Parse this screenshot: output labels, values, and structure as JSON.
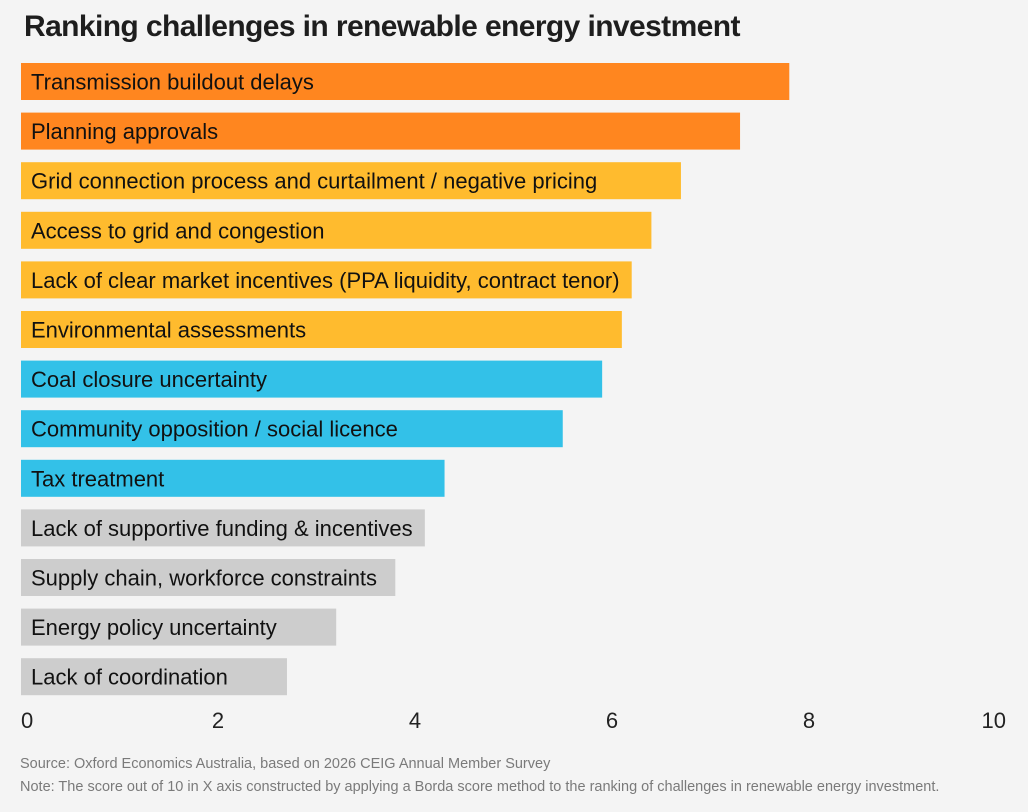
{
  "title": "Ranking challenges in renewable energy investment",
  "source": "Source: Oxford Economics Australia, based on 2026 CEIG Annual Member Survey",
  "note": "Note: The score out of 10 in X axis constructed by applying a Borda score method to the ranking of challenges in renewable energy investment.",
  "colors": {
    "orange": "#ff861f",
    "yellow": "#ffbb2e",
    "blue": "#33c1e8",
    "grey": "#cdcdcd"
  },
  "chart_data": {
    "type": "bar",
    "orientation": "horizontal",
    "title": "Ranking challenges in renewable energy investment",
    "xlim": [
      0,
      10
    ],
    "xticks": [
      0,
      2,
      4,
      6,
      8,
      10
    ],
    "grid": false,
    "categories": [
      "Transmission buildout delays",
      "Planning approvals",
      "Grid connection process and curtailment / negative pricing",
      "Access to grid and congestion",
      "Lack of clear market incentives (PPA liquidity, contract tenor)",
      "Environmental assessments",
      "Coal closure uncertainty",
      "Community opposition / social licence",
      "Tax treatment",
      "Lack of supportive funding & incentives",
      "Supply chain, workforce constraints",
      "Energy policy uncertainty",
      "Lack of coordination"
    ],
    "values": [
      7.8,
      7.3,
      6.7,
      6.4,
      6.2,
      6.1,
      5.9,
      5.5,
      4.3,
      4.1,
      3.8,
      3.2,
      2.7
    ],
    "bar_colors": [
      "orange",
      "orange",
      "yellow",
      "yellow",
      "yellow",
      "yellow",
      "blue",
      "blue",
      "blue",
      "grey",
      "grey",
      "grey",
      "grey"
    ]
  }
}
